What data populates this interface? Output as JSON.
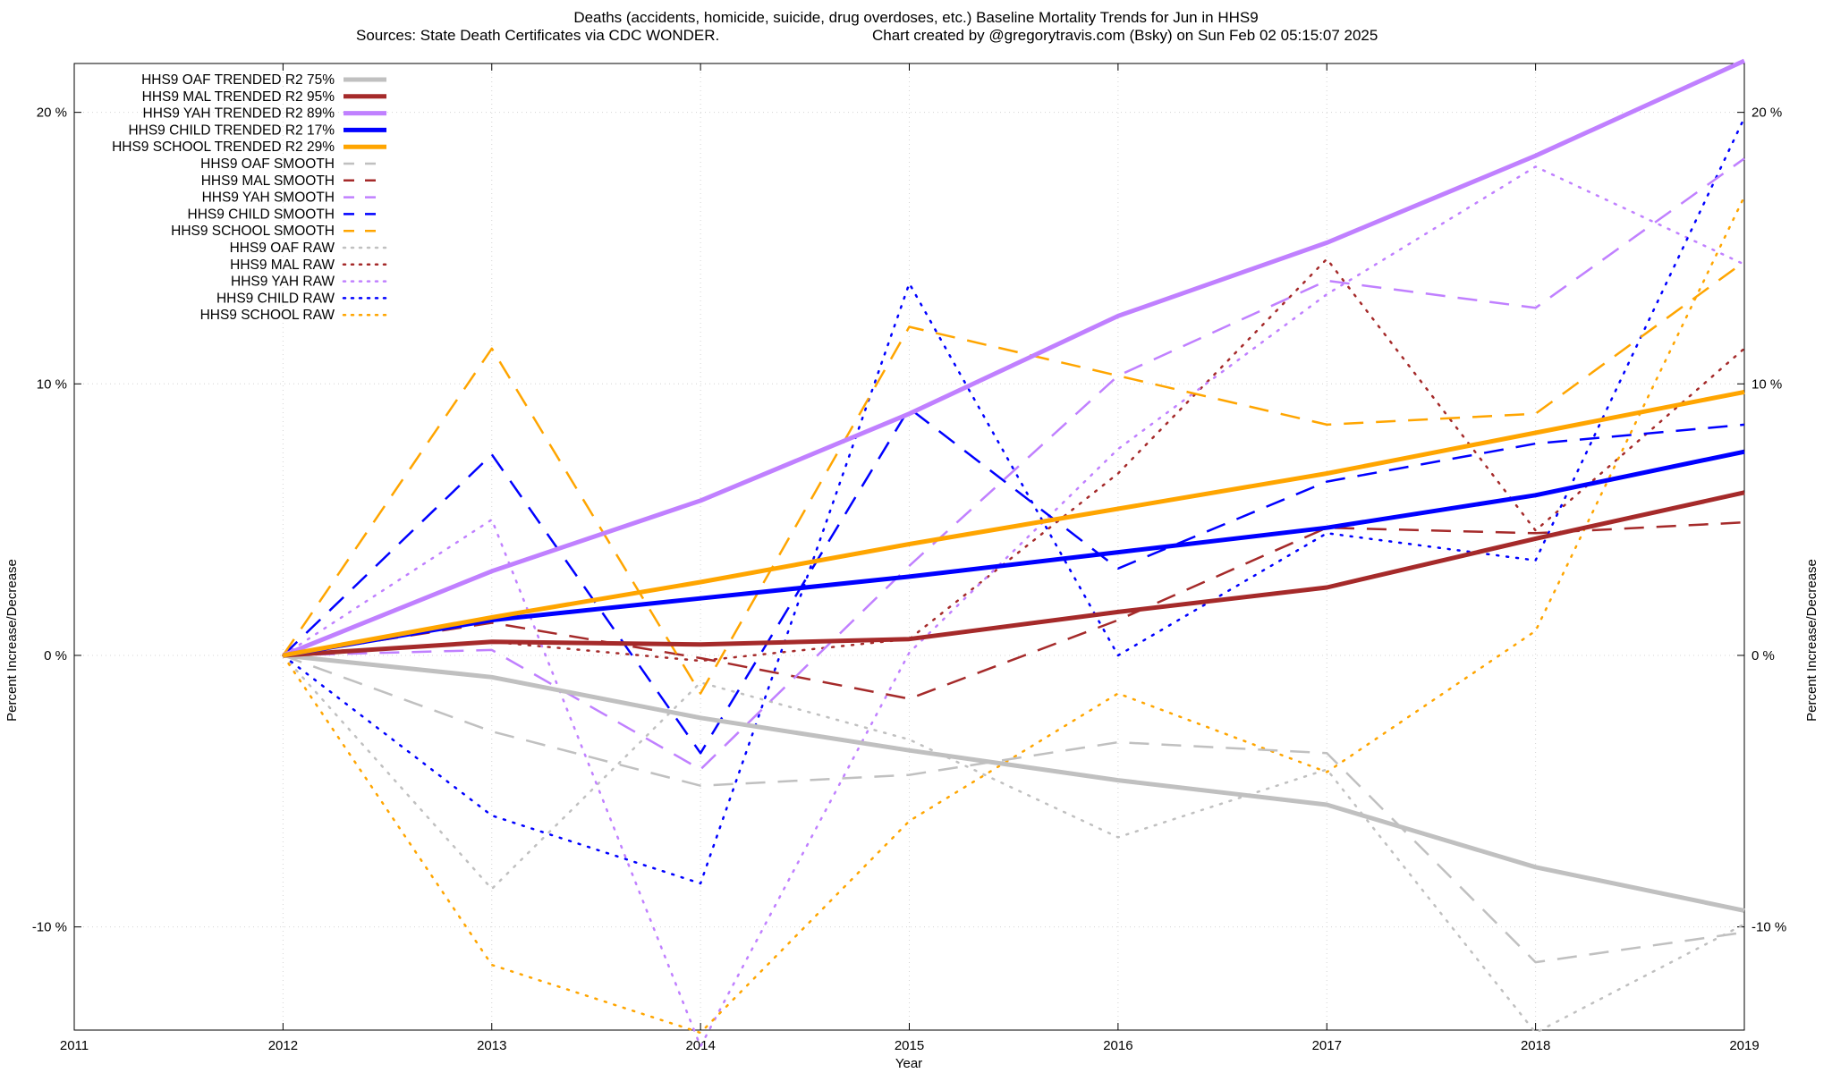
{
  "chart_data": {
    "type": "line",
    "title": "Deaths (accidents, homicide, suicide, drug overdoses, etc.)  Baseline Mortality Trends for Jun in HHS9",
    "subtitle_left": "Sources: State Death Certificates via CDC WONDER.",
    "subtitle_right": "Chart created by @gregorytravis.com (Bsky) on Sun Feb 02 05:15:07 2025",
    "xlabel": "Year",
    "ylabel_left": "Percent Increase/Decrease",
    "ylabel_right": "Percent Increase/Decrease",
    "xlim": [
      2011,
      2019
    ],
    "ylim": [
      -13.8,
      21.8
    ],
    "x_ticks": [
      2011,
      2012,
      2013,
      2014,
      2015,
      2016,
      2017,
      2018,
      2019
    ],
    "x_tick_labels": [
      "2011",
      "2012",
      "2013",
      "2014",
      "2015",
      "2016",
      "2017",
      "2018",
      "2019"
    ],
    "y_ticks": [
      -10,
      0,
      10,
      20
    ],
    "y_tick_labels": [
      "-10 %",
      "0 %",
      "10 %",
      "20 %"
    ],
    "grid": true,
    "legend_position": "top-left",
    "x": [
      2012,
      2013,
      2014,
      2015,
      2016,
      2017,
      2018,
      2019
    ],
    "series": [
      {
        "name": "HHS9 OAF TRENDED R2  75%",
        "style": "solid",
        "color": "#c0c0c0",
        "values": [
          0,
          -0.8,
          -2.3,
          -3.5,
          -4.6,
          -5.5,
          -7.8,
          -9.4
        ]
      },
      {
        "name": "HHS9 MAL TRENDED R2  95%",
        "style": "solid",
        "color": "#a52a2a",
        "values": [
          0,
          0.5,
          0.4,
          0.6,
          1.6,
          2.5,
          4.3,
          6.0
        ]
      },
      {
        "name": "HHS9 YAH TRENDED R2  89%",
        "style": "solid",
        "color": "#c080ff",
        "values": [
          0,
          3.1,
          5.7,
          8.9,
          12.5,
          15.2,
          18.4,
          21.9
        ]
      },
      {
        "name": "HHS9 CHILD TRENDED R2  17%",
        "style": "solid",
        "color": "#0000ff",
        "values": [
          0,
          1.3,
          2.1,
          2.9,
          3.8,
          4.7,
          5.9,
          7.5
        ]
      },
      {
        "name": "HHS9 SCHOOL TRENDED R2  29%",
        "style": "solid",
        "color": "#ffa500",
        "values": [
          0,
          1.4,
          2.7,
          4.1,
          5.4,
          6.7,
          8.2,
          9.7
        ]
      },
      {
        "name": "HHS9 OAF SMOOTH",
        "style": "dashed",
        "color": "#c0c0c0",
        "values": [
          0,
          -2.8,
          -4.8,
          -4.4,
          -3.2,
          -3.6,
          -11.3,
          -10.2
        ]
      },
      {
        "name": "HHS9 MAL SMOOTH",
        "style": "dashed",
        "color": "#a52a2a",
        "values": [
          0,
          1.2,
          -0.1,
          -1.6,
          1.3,
          4.7,
          4.5,
          4.9
        ]
      },
      {
        "name": "HHS9 YAH SMOOTH",
        "style": "dashed",
        "color": "#c080ff",
        "values": [
          0,
          0.2,
          -4.2,
          3.3,
          10.3,
          13.8,
          12.8,
          18.3
        ]
      },
      {
        "name": "HHS9 CHILD SMOOTH",
        "style": "dashed",
        "color": "#0000ff",
        "values": [
          0,
          7.4,
          -3.6,
          9.1,
          3.2,
          6.4,
          7.8,
          8.5
        ]
      },
      {
        "name": "HHS9 SCHOOL SMOOTH",
        "style": "dashed",
        "color": "#ffa500",
        "values": [
          0,
          11.3,
          -1.4,
          12.1,
          10.3,
          8.5,
          8.9,
          14.5
        ]
      },
      {
        "name": "HHS9 OAF RAW",
        "style": "dotted",
        "color": "#c0c0c0",
        "values": [
          0,
          -8.6,
          -1.0,
          -3.1,
          -6.7,
          -4.2,
          -13.9,
          -9.9
        ]
      },
      {
        "name": "HHS9 MAL RAW",
        "style": "dotted",
        "color": "#a52a2a",
        "values": [
          0,
          0.5,
          -0.2,
          0.6,
          6.7,
          14.6,
          4.6,
          11.3
        ]
      },
      {
        "name": "HHS9 YAH RAW",
        "style": "dotted",
        "color": "#c080ff",
        "values": [
          0,
          5.0,
          -14.4,
          0.1,
          7.6,
          13.3,
          18.0,
          14.4
        ]
      },
      {
        "name": "HHS9 CHILD RAW",
        "style": "dotted",
        "color": "#0000ff",
        "values": [
          0,
          -5.9,
          -8.4,
          13.7,
          0.0,
          4.5,
          3.5,
          19.8
        ]
      },
      {
        "name": "HHS9 SCHOOL RAW",
        "style": "dotted",
        "color": "#ffa500",
        "values": [
          0,
          -11.4,
          -13.9,
          -6.1,
          -1.4,
          -4.3,
          0.9,
          16.9
        ]
      }
    ]
  }
}
